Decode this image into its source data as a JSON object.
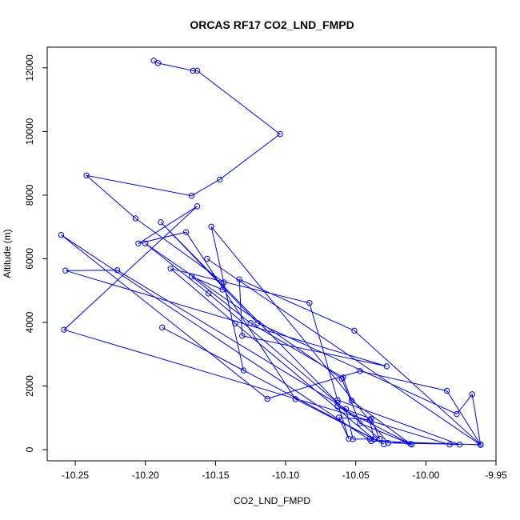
{
  "chart_data": {
    "type": "line",
    "title": "ORCAS RF17 CO2_LND_FMPD",
    "xlabel": "CO2_LND_FMPD",
    "ylabel": "Altitude (m)",
    "xlim": [
      -10.27,
      -9.95
    ],
    "ylim": [
      -350,
      12650
    ],
    "x_ticks": [
      -10.25,
      -10.2,
      -10.15,
      -10.1,
      -10.05,
      -10.0,
      -9.95
    ],
    "x_tick_labels": [
      "-10.25",
      "-10.20",
      "-10.15",
      "-10.10",
      "-10.05",
      "-10.00",
      "-9.95"
    ],
    "y_ticks": [
      0,
      2000,
      4000,
      6000,
      8000,
      10000,
      12000
    ],
    "y_tick_labels": [
      "0",
      "2000",
      "4000",
      "6000",
      "8000",
      "10000",
      "12000"
    ],
    "series": [
      {
        "color": "#0000ff",
        "marker": "open-circle",
        "x": [
          -10.194,
          -10.191,
          -10.166,
          -10.163,
          -10.104,
          -10.147,
          -10.167,
          -10.242,
          -10.207,
          -10.144,
          -10.145,
          -10.167,
          -10.125,
          -10.059,
          -10.053,
          -10.011,
          -10.063,
          -10.039,
          -10.033,
          -10.155,
          -10.2,
          -10.06,
          -10.047,
          -10.01,
          -10.04,
          -10.052,
          -10.057,
          -10.22,
          -10.257,
          -10.028,
          -10.131,
          -10.133,
          -10.051,
          -9.961,
          -9.967,
          -9.978,
          -10.12,
          -10.189,
          -10.063,
          -10.055,
          -10.062,
          -10.04,
          -10.037,
          -10.136,
          -10.182,
          -10.083,
          -10.063,
          -9.976,
          -9.983,
          -10.258,
          -10.163,
          -10.205,
          -10.171,
          -10.093,
          -10.03,
          -10.188,
          -10.13,
          -10.153,
          -10.027,
          -9.961,
          -9.985,
          -10.047,
          -10.113,
          -10.26,
          -10.039,
          -9.961,
          -10.156
        ],
        "y": [
          12230,
          12150,
          11910,
          11910,
          9920,
          8490,
          7980,
          8620,
          7270,
          5260,
          5030,
          5440,
          3980,
          2270,
          1540,
          180,
          1360,
          970,
          340,
          4910,
          6480,
          2230,
          830,
          160,
          340,
          330,
          1280,
          5640,
          5630,
          2620,
          3580,
          5350,
          3740,
          160,
          1740,
          1120,
          3980,
          7150,
          1480,
          340,
          1010,
          940,
          330,
          3970,
          5690,
          4610,
          1560,
          160,
          160,
          3770,
          7650,
          6480,
          6840,
          1590,
          170,
          3840,
          2490,
          7010,
          210,
          160,
          1850,
          2470,
          1600,
          6750,
          270,
          150,
          6000
        ]
      }
    ]
  }
}
